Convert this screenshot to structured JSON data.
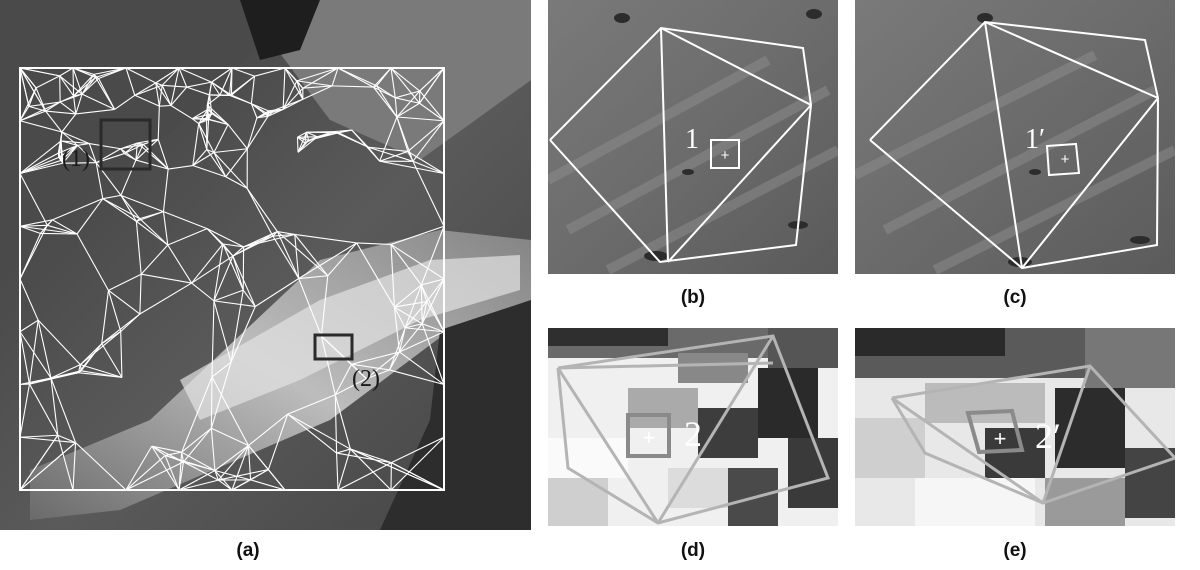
{
  "figure": {
    "captions": [
      "(a)",
      "(b)",
      "(c)",
      "(d)",
      "(e)"
    ],
    "panel_a": {
      "region_labels": [
        "(1)",
        "(2)"
      ]
    },
    "panel_b": {
      "point_label": "1"
    },
    "panel_c": {
      "point_label": "1′"
    },
    "panel_d": {
      "point_label": "2"
    },
    "panel_e": {
      "point_label": "2′"
    },
    "marker_glyph": "+"
  },
  "colors": {
    "mesh": "#ffffff",
    "region_box": "#2a2a2a",
    "gray_mesh": "#b4b4b4",
    "gray_box": "#8a8a8a"
  }
}
